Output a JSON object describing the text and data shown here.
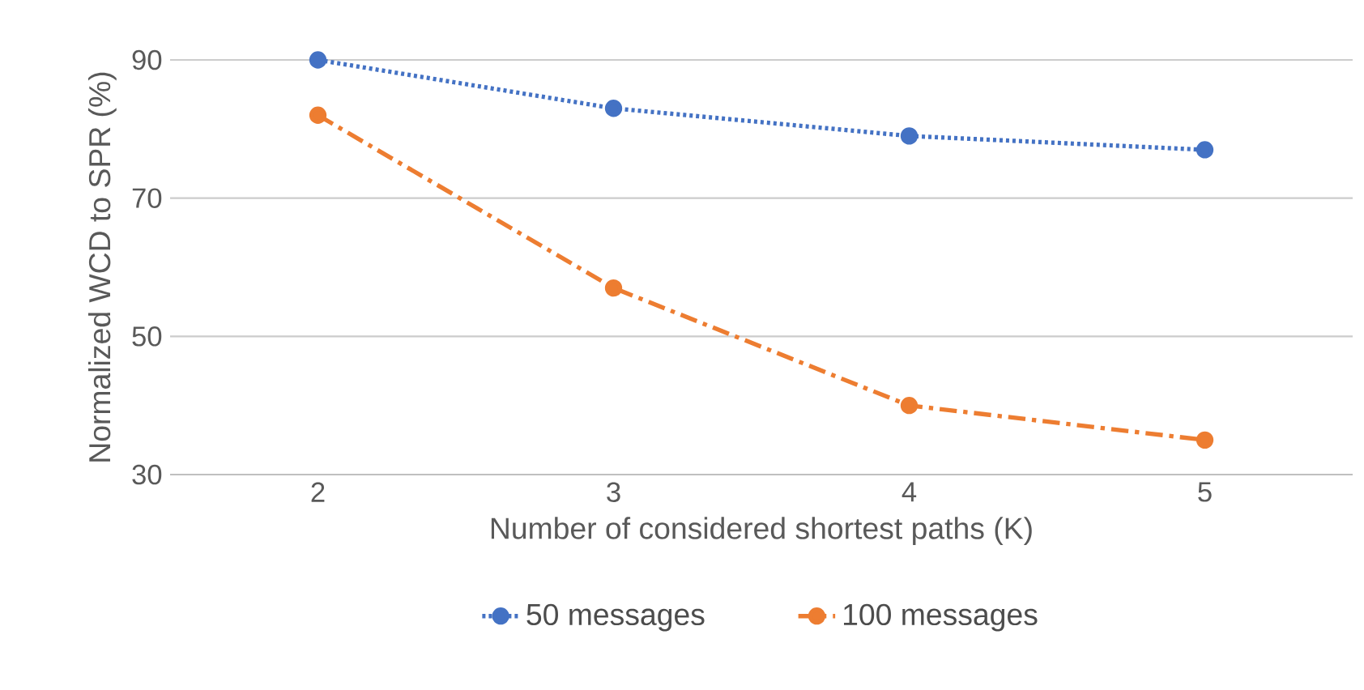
{
  "chart_data": {
    "type": "line",
    "xlabel": "Number of considered shortest paths (K)",
    "ylabel": "Normalized WCD to SPR (%)",
    "categories": [
      "2",
      "3",
      "4",
      "5"
    ],
    "series": [
      {
        "name": "50 messages",
        "color": "#4472c4",
        "values": [
          90,
          83,
          79,
          77
        ],
        "line_style": "dotted"
      },
      {
        "name": "100 messages",
        "color": "#ed7d31",
        "values": [
          82,
          57,
          40,
          35
        ],
        "line_style": "dashed"
      }
    ],
    "ylim": [
      30,
      90
    ],
    "yticks": [
      30,
      50,
      70,
      90
    ],
    "grid": "y",
    "legend": "bottom",
    "marker": "circle"
  }
}
